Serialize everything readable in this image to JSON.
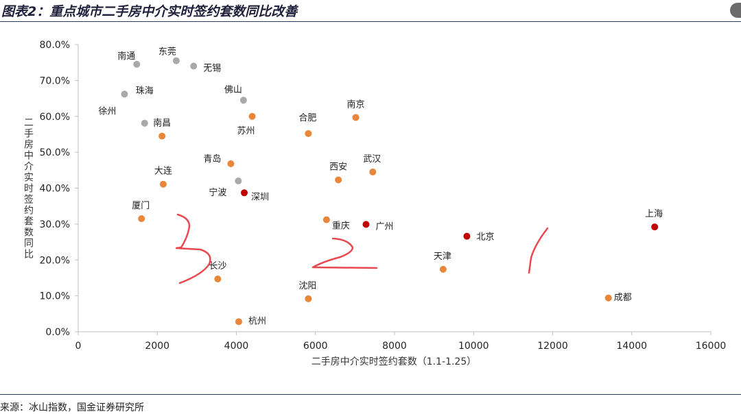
{
  "figure": {
    "title": "图表2：重点城市二手房中介实时签约套数同比改善",
    "source": "来源：冰山指数，国金证券研究所"
  },
  "colors": {
    "gray": "#a9a9a9",
    "orange": "#e8873a",
    "red": "#c00000",
    "annotation": "#e8484f",
    "axis": "#bfbfbf"
  },
  "chart_data": {
    "type": "scatter",
    "xlabel": "二手房中介实时签约套数（1.1-1.25）",
    "ylabel": "二手房中介实时签约套数同比",
    "xlim": [
      0,
      16000
    ],
    "ylim": [
      0,
      0.8
    ],
    "x_ticks": [
      0,
      2000,
      4000,
      6000,
      8000,
      10000,
      12000,
      14000,
      16000
    ],
    "y_ticks": [
      0.0,
      0.1,
      0.2,
      0.3,
      0.4,
      0.5,
      0.6,
      0.7,
      0.8
    ],
    "x_tick_labels": [
      "0",
      "2000",
      "4000",
      "6000",
      "8000",
      "10000",
      "12000",
      "14000",
      "16000"
    ],
    "y_tick_labels": [
      "0.0%",
      "10.0%",
      "20.0%",
      "30.0%",
      "40.0%",
      "50.0%",
      "60.0%",
      "70.0%",
      "80.0%"
    ],
    "grid": false,
    "points": [
      {
        "label": "南通",
        "x": 1480,
        "y": 0.745,
        "group": "gray",
        "lx": -28,
        "ly": -13
      },
      {
        "label": "东莞",
        "x": 2480,
        "y": 0.755,
        "group": "gray",
        "lx": -26,
        "ly": -14
      },
      {
        "label": "无锡",
        "x": 2920,
        "y": 0.74,
        "group": "gray",
        "lx": 14,
        "ly": 2
      },
      {
        "label": "徐州",
        "x": 1170,
        "y": 0.662,
        "group": "gray",
        "lx": -38,
        "ly": 24
      },
      {
        "label": "珠海",
        "x": 1680,
        "y": 0.581,
        "group": "gray",
        "lx": -13,
        "ly": -48
      },
      {
        "label": "佛山",
        "x": 4180,
        "y": 0.645,
        "group": "gray",
        "lx": -28,
        "ly": -16
      },
      {
        "label": "宁波",
        "x": 4050,
        "y": 0.42,
        "group": "gray",
        "lx": -43,
        "ly": 16
      },
      {
        "label": "南昌",
        "x": 2120,
        "y": 0.545,
        "group": "orange",
        "lx": -13,
        "ly": -20
      },
      {
        "label": "苏州",
        "x": 4400,
        "y": 0.6,
        "group": "orange",
        "lx": -22,
        "ly": 20
      },
      {
        "label": "合肥",
        "x": 5820,
        "y": 0.552,
        "group": "orange",
        "lx": -14,
        "ly": -24
      },
      {
        "label": "南京",
        "x": 7020,
        "y": 0.597,
        "group": "orange",
        "lx": -13,
        "ly": -20
      },
      {
        "label": "青岛",
        "x": 3860,
        "y": 0.468,
        "group": "orange",
        "lx": -40,
        "ly": -8
      },
      {
        "label": "大连",
        "x": 2150,
        "y": 0.411,
        "group": "orange",
        "lx": -13,
        "ly": -20
      },
      {
        "label": "西安",
        "x": 6580,
        "y": 0.423,
        "group": "orange",
        "lx": -13,
        "ly": -20
      },
      {
        "label": "武汉",
        "x": 7450,
        "y": 0.445,
        "group": "orange",
        "lx": -14,
        "ly": -20
      },
      {
        "label": "厦门",
        "x": 1600,
        "y": 0.315,
        "group": "orange",
        "lx": -14,
        "ly": -20
      },
      {
        "label": "重庆",
        "x": 6280,
        "y": 0.312,
        "group": "orange",
        "lx": 8,
        "ly": 8
      },
      {
        "label": "长沙",
        "x": 3530,
        "y": 0.147,
        "group": "orange",
        "lx": -13,
        "ly": -20
      },
      {
        "label": "沈阳",
        "x": 5820,
        "y": 0.092,
        "group": "orange",
        "lx": -14,
        "ly": -20
      },
      {
        "label": "杭州",
        "x": 4060,
        "y": 0.028,
        "group": "orange",
        "lx": 14,
        "ly": -2
      },
      {
        "label": "天津",
        "x": 9230,
        "y": 0.174,
        "group": "orange",
        "lx": -14,
        "ly": -20
      },
      {
        "label": "成都",
        "x": 13410,
        "y": 0.094,
        "group": "orange",
        "lx": 8,
        "ly": -2
      },
      {
        "label": "深圳",
        "x": 4200,
        "y": 0.387,
        "group": "red",
        "lx": 10,
        "ly": 5
      },
      {
        "label": "广州",
        "x": 7280,
        "y": 0.299,
        "group": "red",
        "lx": 14,
        "ly": 2
      },
      {
        "label": "北京",
        "x": 9830,
        "y": 0.266,
        "group": "red",
        "lx": 14,
        "ly": 0
      },
      {
        "label": "上海",
        "x": 14580,
        "y": 0.292,
        "group": "red",
        "lx": -14,
        "ly": -20
      }
    ]
  }
}
